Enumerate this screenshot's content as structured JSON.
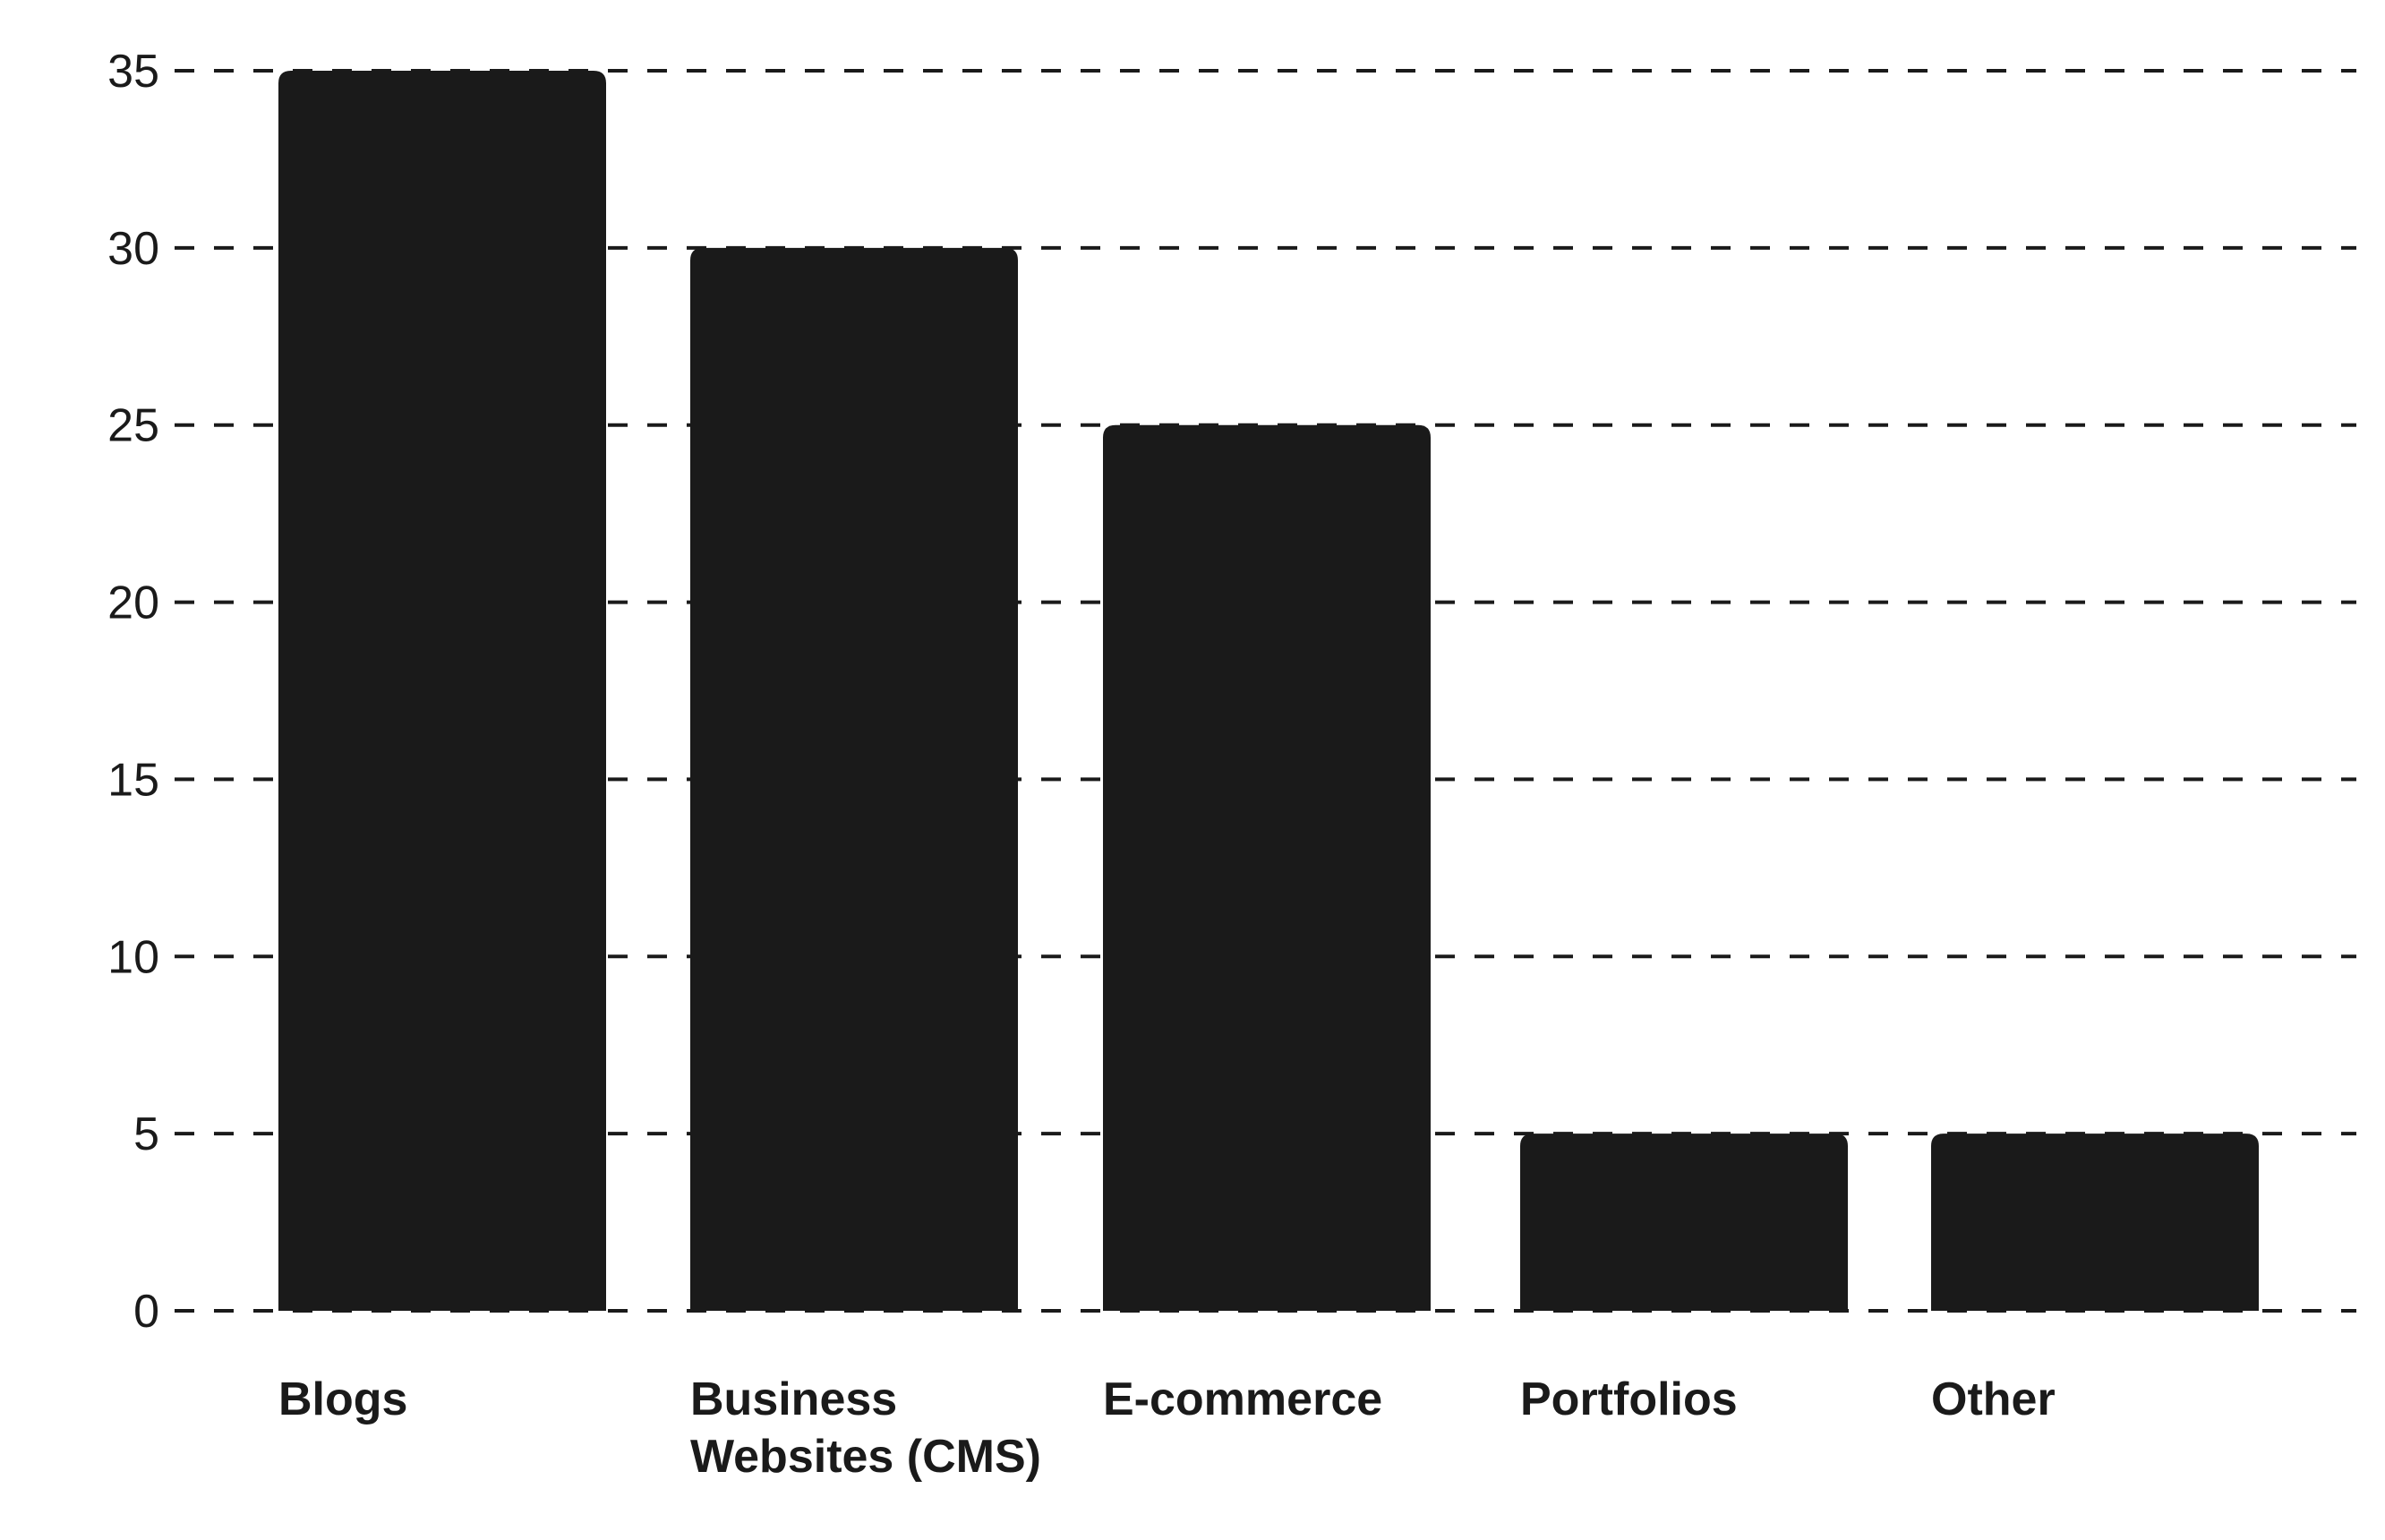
{
  "chart_data": {
    "type": "bar",
    "categories": [
      "Blogs",
      "Business Websites (CMS)",
      "E-commerce",
      "Portfolios",
      "Other"
    ],
    "category_lines": [
      [
        "Blogs"
      ],
      [
        "Business",
        "Websites (CMS)"
      ],
      [
        "E-commerce"
      ],
      [
        "Portfolios"
      ],
      [
        "Other"
      ]
    ],
    "values": [
      35,
      30,
      25,
      5,
      5
    ],
    "title": "",
    "xlabel": "",
    "ylabel": "",
    "ylim": [
      0,
      35
    ],
    "yticks": [
      0,
      5,
      10,
      15,
      20,
      25,
      30,
      35
    ],
    "grid": true,
    "grid_style": "dashed",
    "legend": "none",
    "colors": {
      "bar": "#1a1a1a",
      "grid": "#1a1a1a",
      "text": "#1a1a1a",
      "background": "#ffffff"
    }
  }
}
